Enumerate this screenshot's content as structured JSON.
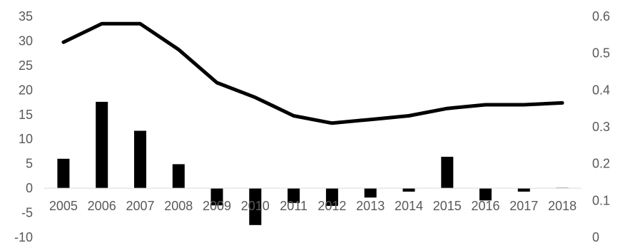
{
  "chart_data": {
    "type": "bar+line",
    "title": "",
    "categories": [
      "2005",
      "2006",
      "2007",
      "2008",
      "2009",
      "2010",
      "2011",
      "2012",
      "2013",
      "2014",
      "2015",
      "2016",
      "2017",
      "2018"
    ],
    "series": [
      {
        "type": "bar",
        "axis": "left",
        "values": [
          6.0,
          17.6,
          11.7,
          4.9,
          -3.5,
          -7.5,
          -3.0,
          -3.6,
          -1.9,
          -0.7,
          6.4,
          -2.5,
          -0.7,
          0.1
        ],
        "color": "#000000"
      },
      {
        "type": "line",
        "axis": "right",
        "values": [
          0.53,
          0.58,
          0.58,
          0.51,
          0.42,
          0.38,
          0.33,
          0.31,
          0.32,
          0.33,
          0.35,
          0.36,
          0.36,
          0.365
        ],
        "color": "#000000"
      }
    ],
    "y_left": {
      "ylim": [
        -10,
        35
      ],
      "ticks": [
        "-10",
        "-5",
        "0",
        "5",
        "10",
        "15",
        "20",
        "25",
        "30",
        "35"
      ]
    },
    "y_right": {
      "ylim": [
        0,
        0.6
      ],
      "ticks": [
        "0",
        "0.1",
        "0.2",
        "0.3",
        "0.4",
        "0.5",
        "0.6"
      ]
    },
    "grid": false,
    "legend": "none",
    "tick_color": "#595959",
    "axis_color": "#d9d9d9"
  }
}
